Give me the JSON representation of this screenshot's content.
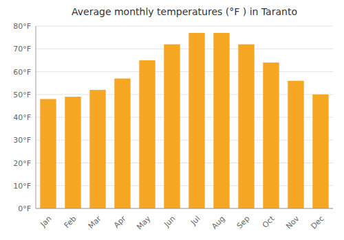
{
  "chart_data": {
    "type": "bar",
    "title": "Average monthly temperatures (°F ) in Taranto",
    "categories": [
      "Jan",
      "Feb",
      "Mar",
      "Apr",
      "May",
      "Jun",
      "Jul",
      "Aug",
      "Sep",
      "Oct",
      "Nov",
      "Dec"
    ],
    "values": [
      48,
      49,
      52,
      57,
      65,
      72,
      77,
      77,
      72,
      64,
      56,
      50
    ],
    "color": "#F5A623",
    "ylim": [
      0,
      80
    ],
    "yticks": [
      {
        "value": 0,
        "label": "0°F"
      },
      {
        "value": 10,
        "label": "10°F"
      },
      {
        "value": 20,
        "label": "20°F"
      },
      {
        "value": 30,
        "label": "30°F"
      },
      {
        "value": 40,
        "label": "40°F"
      },
      {
        "value": 50,
        "label": "50°F"
      },
      {
        "value": 60,
        "label": "60°F"
      },
      {
        "value": 70,
        "label": "70°F"
      },
      {
        "value": 80,
        "label": "80°F"
      }
    ],
    "grid": true
  }
}
